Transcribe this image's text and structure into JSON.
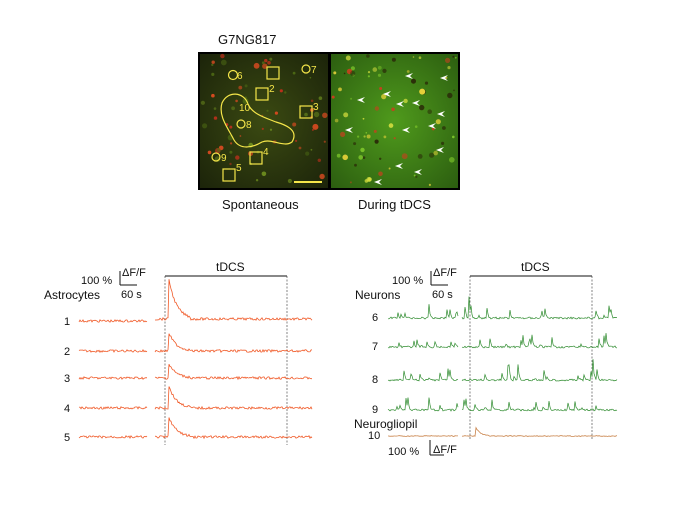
{
  "figure": {
    "title": "G7NG817",
    "panel_labels": {
      "left": "Spontaneous",
      "right": "During tDCS"
    },
    "roi_labels": [
      "1",
      "2",
      "3",
      "4",
      "5",
      "6",
      "7",
      "8",
      "9",
      "10"
    ],
    "colors": {
      "astrocyte_trace": "#f05a28",
      "neuron_trace": "#2e8b2e",
      "neuropil_trace": "#c9834a",
      "roi_outline": "#f5e64a"
    }
  },
  "astro_panel": {
    "stim_label": "tDCS",
    "scale_pct": "100 %",
    "scale_dff": "ΔF/F",
    "scale_time": "60 s",
    "group_label": "Astrocytes",
    "rows": [
      "1",
      "2",
      "3",
      "4",
      "5"
    ]
  },
  "neuro_panel": {
    "stim_label": "tDCS",
    "scale_pct": "100 %",
    "scale_dff": "ΔF/F",
    "scale_time": "60 s",
    "group_label": "Neurons",
    "rows": [
      "6",
      "7",
      "8",
      "9"
    ],
    "neuropil_label": "Neurogliopil",
    "neuropil_row": "10",
    "bottom_scale_pct": "100 %",
    "bottom_scale_dff": "ΔF/F"
  }
}
